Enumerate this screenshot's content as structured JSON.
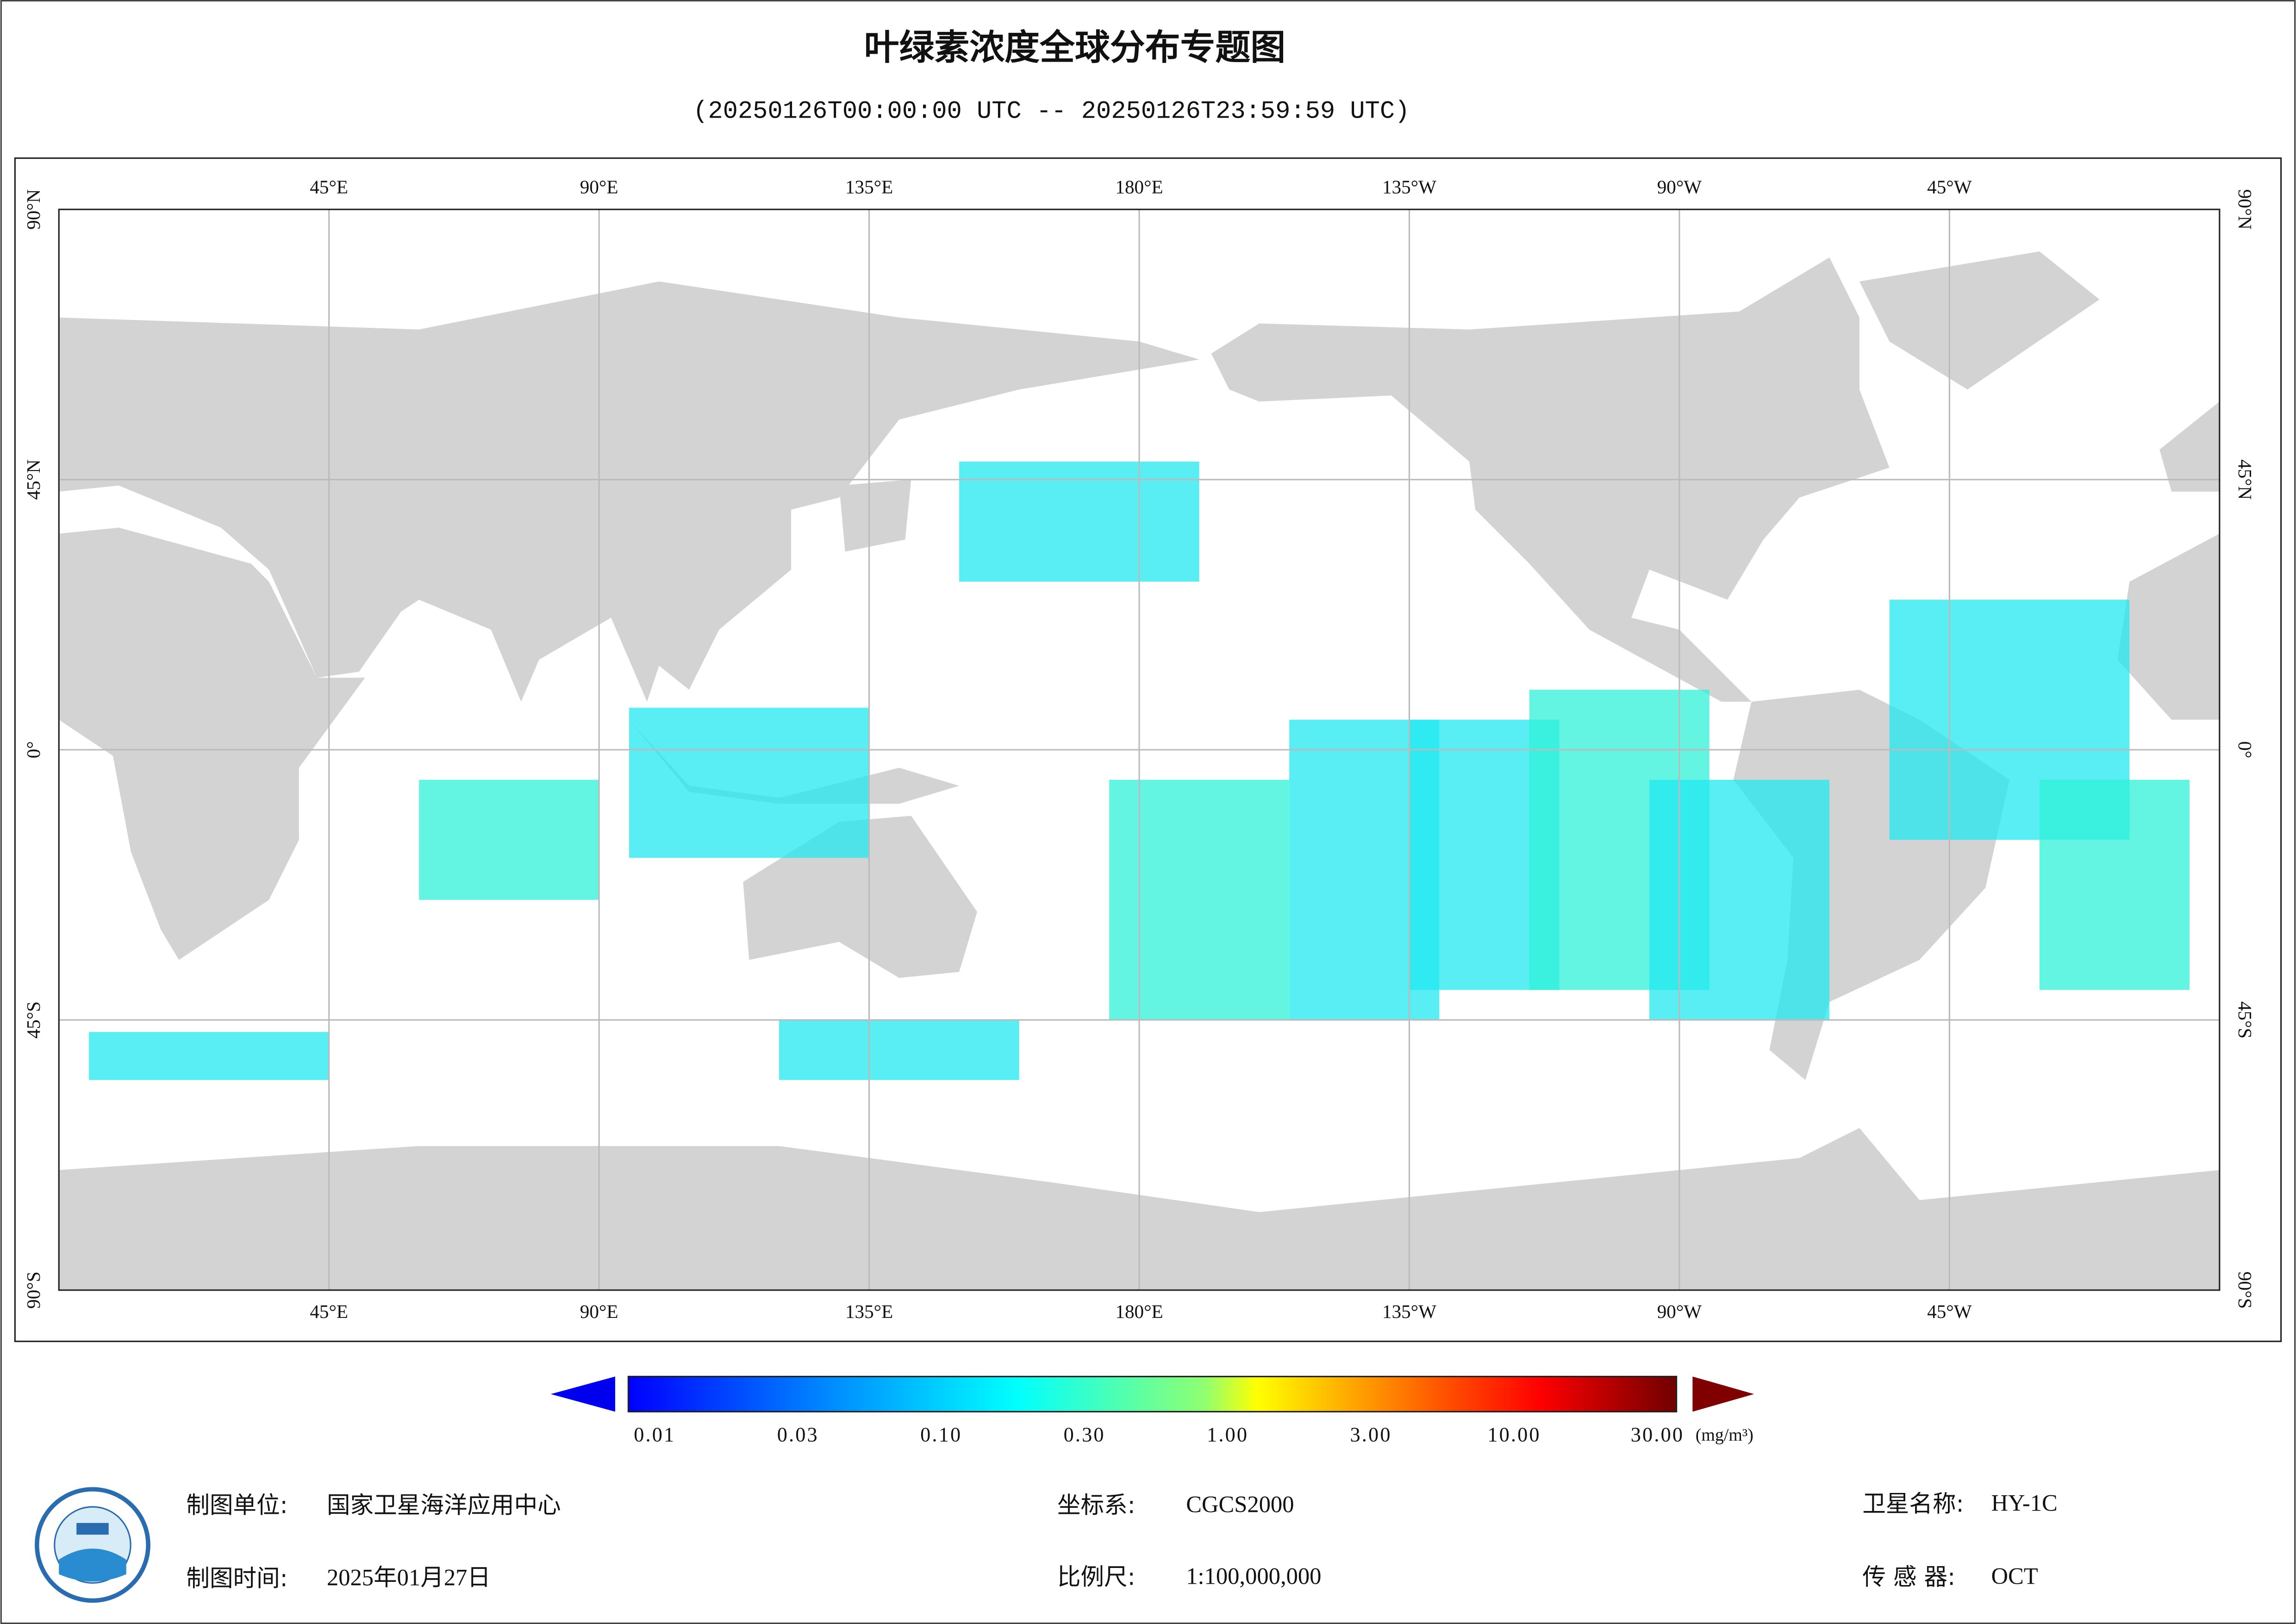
{
  "header": {
    "title": "叶绿素浓度全球分布专题图",
    "subtitle": "(20250126T00:00:00 UTC -- 20250126T23:59:59 UTC)"
  },
  "map": {
    "lon_labels": [
      "45°E",
      "90°E",
      "135°E",
      "180°E",
      "135°W",
      "90°W",
      "45°W"
    ],
    "lat_labels": [
      "90°N",
      "45°N",
      "0°",
      "45°S",
      "90°S"
    ]
  },
  "colorbar": {
    "labels": [
      "0.01",
      "0.03",
      "0.10",
      "0.30",
      "1.00",
      "3.00",
      "10.00",
      "30.00"
    ],
    "unit": "(mg/m³)"
  },
  "footer": {
    "unit_label": "制图单位:",
    "unit_value": "国家卫星海洋应用中心",
    "date_label": "制图时间:",
    "date_value": "2025年01月27日",
    "crs_label": "坐标系:",
    "crs_value": "CGCS2000",
    "scale_label": "比例尺:",
    "scale_value": "1:100,000,000",
    "sat_label": "卫星名称:",
    "sat_value": "HY-1C",
    "sensor_label": "传 感 器:",
    "sensor_value": "OCT"
  }
}
